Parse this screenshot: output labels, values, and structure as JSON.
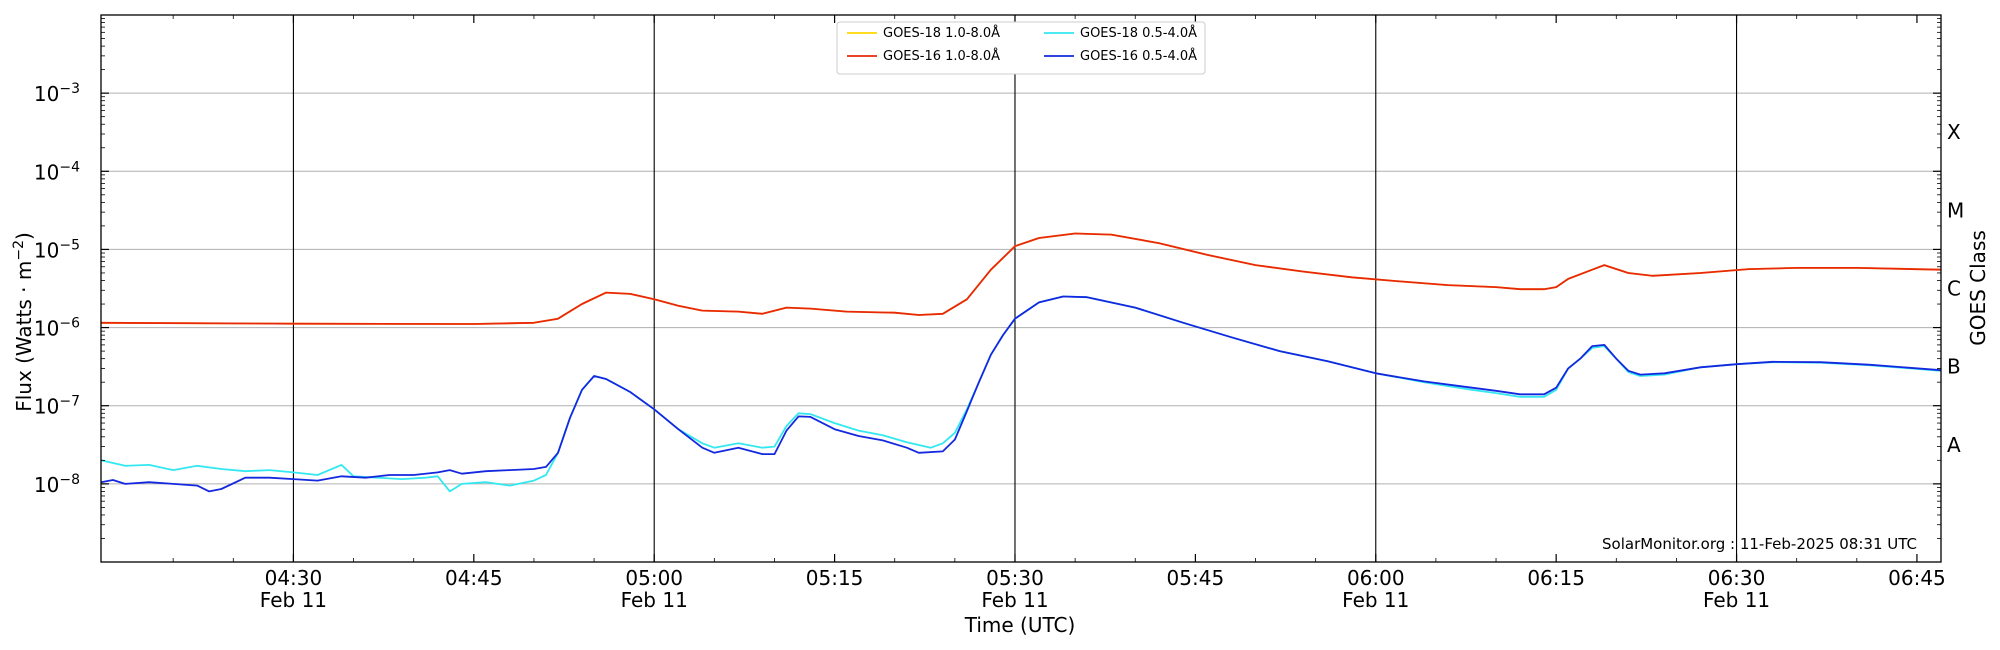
{
  "chart_data": {
    "type": "line",
    "xlabel": "Time (UTC)",
    "ylabel": "Flux (Watts · m",
    "ylabel_exp": "−2",
    "ylabel_close": ")",
    "y2label": "GOES Class",
    "x_units": "minutes after 04:00 UTC, 11 Feb 2025",
    "xlim": [
      14,
      167
    ],
    "ylim_log10": [
      -9,
      -2
    ],
    "y_scale": "log",
    "grid": "horizontal at each decade",
    "legend_position": "top-center",
    "x_ticks": [
      {
        "t": 30,
        "time": "04:30",
        "date": "Feb 11"
      },
      {
        "t": 45,
        "time": "04:45",
        "date": ""
      },
      {
        "t": 60,
        "time": "05:00",
        "date": "Feb 11"
      },
      {
        "t": 75,
        "time": "05:15",
        "date": ""
      },
      {
        "t": 90,
        "time": "05:30",
        "date": "Feb 11"
      },
      {
        "t": 105,
        "time": "05:45",
        "date": ""
      },
      {
        "t": 120,
        "time": "06:00",
        "date": "Feb 11"
      },
      {
        "t": 135,
        "time": "06:15",
        "date": ""
      },
      {
        "t": 150,
        "time": "06:30",
        "date": "Feb 11"
      },
      {
        "t": 165,
        "time": "06:45",
        "date": ""
      }
    ],
    "vlines_t": [
      30,
      60,
      90,
      120,
      150
    ],
    "y_ticks": [
      {
        "exp": -8,
        "base": "10",
        "sup": "−8"
      },
      {
        "exp": -7,
        "base": "10",
        "sup": "−7"
      },
      {
        "exp": -6,
        "base": "10",
        "sup": "−6"
      },
      {
        "exp": -5,
        "base": "10",
        "sup": "−5"
      },
      {
        "exp": -4,
        "base": "10",
        "sup": "−4"
      },
      {
        "exp": -3,
        "base": "10",
        "sup": "−3"
      }
    ],
    "goes_classes": [
      {
        "label": "A",
        "exp": -7.5
      },
      {
        "label": "B",
        "exp": -6.5
      },
      {
        "label": "C",
        "exp": -5.5
      },
      {
        "label": "M",
        "exp": -4.5
      },
      {
        "label": "X",
        "exp": -3.5
      }
    ],
    "watermark": "SolarMonitor.org : 11-Feb-2025 08:31 UTC",
    "series": [
      {
        "name": "GOES-18 1.0-8.0Å",
        "color": "#ffd700",
        "points": [
          [
            14,
            1.15e-06
          ],
          [
            30,
            1.12e-06
          ],
          [
            45,
            1.11e-06
          ],
          [
            50,
            1.15e-06
          ],
          [
            52,
            1.3e-06
          ],
          [
            54,
            2e-06
          ],
          [
            56,
            2.8e-06
          ],
          [
            58,
            2.7e-06
          ],
          [
            60,
            2.3e-06
          ],
          [
            62,
            1.9e-06
          ],
          [
            64,
            1.65e-06
          ],
          [
            67,
            1.6e-06
          ],
          [
            69,
            1.5e-06
          ],
          [
            71,
            1.8e-06
          ],
          [
            73,
            1.75e-06
          ],
          [
            76,
            1.6e-06
          ],
          [
            80,
            1.55e-06
          ],
          [
            82,
            1.45e-06
          ],
          [
            84,
            1.5e-06
          ],
          [
            86,
            2.3e-06
          ],
          [
            88,
            5.5e-06
          ],
          [
            90,
            1.1e-05
          ],
          [
            92,
            1.4e-05
          ],
          [
            95,
            1.6e-05
          ],
          [
            98,
            1.55e-05
          ],
          [
            102,
            1.2e-05
          ],
          [
            106,
            8.5e-06
          ],
          [
            110,
            6.3e-06
          ],
          [
            114,
            5.2e-06
          ],
          [
            118,
            4.4e-06
          ],
          [
            122,
            3.9e-06
          ],
          [
            126,
            3.5e-06
          ],
          [
            130,
            3.3e-06
          ],
          [
            132,
            3.1e-06
          ],
          [
            134,
            3.1e-06
          ],
          [
            135,
            3.3e-06
          ],
          [
            136,
            4.2e-06
          ],
          [
            138,
            5.5e-06
          ],
          [
            139,
            6.3e-06
          ],
          [
            141,
            5e-06
          ],
          [
            143,
            4.6e-06
          ],
          [
            147,
            5e-06
          ],
          [
            151,
            5.6e-06
          ],
          [
            155,
            5.8e-06
          ],
          [
            160,
            5.8e-06
          ],
          [
            167,
            5.5e-06
          ]
        ]
      },
      {
        "name": "GOES-16 1.0-8.0Å",
        "color": "#e8280c",
        "points": [
          [
            14,
            1.15e-06
          ],
          [
            30,
            1.12e-06
          ],
          [
            45,
            1.11e-06
          ],
          [
            50,
            1.15e-06
          ],
          [
            52,
            1.3e-06
          ],
          [
            54,
            2e-06
          ],
          [
            56,
            2.8e-06
          ],
          [
            58,
            2.7e-06
          ],
          [
            60,
            2.3e-06
          ],
          [
            62,
            1.9e-06
          ],
          [
            64,
            1.65e-06
          ],
          [
            67,
            1.6e-06
          ],
          [
            69,
            1.5e-06
          ],
          [
            71,
            1.8e-06
          ],
          [
            73,
            1.75e-06
          ],
          [
            76,
            1.6e-06
          ],
          [
            80,
            1.55e-06
          ],
          [
            82,
            1.45e-06
          ],
          [
            84,
            1.5e-06
          ],
          [
            86,
            2.3e-06
          ],
          [
            88,
            5.5e-06
          ],
          [
            90,
            1.1e-05
          ],
          [
            92,
            1.4e-05
          ],
          [
            95,
            1.6e-05
          ],
          [
            98,
            1.55e-05
          ],
          [
            102,
            1.2e-05
          ],
          [
            106,
            8.5e-06
          ],
          [
            110,
            6.3e-06
          ],
          [
            114,
            5.2e-06
          ],
          [
            118,
            4.4e-06
          ],
          [
            122,
            3.9e-06
          ],
          [
            126,
            3.5e-06
          ],
          [
            130,
            3.3e-06
          ],
          [
            132,
            3.1e-06
          ],
          [
            134,
            3.1e-06
          ],
          [
            135,
            3.3e-06
          ],
          [
            136,
            4.2e-06
          ],
          [
            138,
            5.5e-06
          ],
          [
            139,
            6.3e-06
          ],
          [
            141,
            5e-06
          ],
          [
            143,
            4.6e-06
          ],
          [
            147,
            5e-06
          ],
          [
            151,
            5.6e-06
          ],
          [
            155,
            5.8e-06
          ],
          [
            160,
            5.8e-06
          ],
          [
            167,
            5.5e-06
          ]
        ]
      },
      {
        "name": "GOES-18 0.5-4.0Å",
        "color": "#33e8f0",
        "points": [
          [
            14,
            2e-08
          ],
          [
            16,
            1.7e-08
          ],
          [
            18,
            1.75e-08
          ],
          [
            20,
            1.5e-08
          ],
          [
            22,
            1.7e-08
          ],
          [
            24,
            1.55e-08
          ],
          [
            26,
            1.45e-08
          ],
          [
            28,
            1.5e-08
          ],
          [
            30,
            1.4e-08
          ],
          [
            32,
            1.3e-08
          ],
          [
            34,
            1.75e-08
          ],
          [
            35,
            1.25e-08
          ],
          [
            37,
            1.2e-08
          ],
          [
            39,
            1.15e-08
          ],
          [
            41,
            1.2e-08
          ],
          [
            42,
            1.25e-08
          ],
          [
            43,
            8e-09
          ],
          [
            44,
            1e-08
          ],
          [
            46,
            1.05e-08
          ],
          [
            48,
            9.5e-09
          ],
          [
            50,
            1.1e-08
          ],
          [
            51,
            1.3e-08
          ],
          [
            52,
            2.5e-08
          ],
          [
            53,
            7e-08
          ],
          [
            54,
            1.6e-07
          ],
          [
            55,
            2.4e-07
          ],
          [
            56,
            2.2e-07
          ],
          [
            58,
            1.5e-07
          ],
          [
            60,
            9e-08
          ],
          [
            62,
            5e-08
          ],
          [
            64,
            3.3e-08
          ],
          [
            65,
            2.9e-08
          ],
          [
            67,
            3.3e-08
          ],
          [
            69,
            2.9e-08
          ],
          [
            70,
            3e-08
          ],
          [
            71,
            5.5e-08
          ],
          [
            72,
            8e-08
          ],
          [
            73,
            7.8e-08
          ],
          [
            75,
            6e-08
          ],
          [
            77,
            4.8e-08
          ],
          [
            79,
            4.2e-08
          ],
          [
            81,
            3.4e-08
          ],
          [
            83,
            2.9e-08
          ],
          [
            84,
            3.3e-08
          ],
          [
            85,
            4.5e-08
          ],
          [
            86,
            9e-08
          ],
          [
            87,
            2e-07
          ],
          [
            88,
            4.5e-07
          ],
          [
            89,
            8e-07
          ],
          [
            90,
            1.3e-06
          ],
          [
            92,
            2.1e-06
          ],
          [
            94,
            2.5e-06
          ],
          [
            96,
            2.45e-06
          ],
          [
            100,
            1.8e-06
          ],
          [
            104,
            1.15e-06
          ],
          [
            108,
            7.5e-07
          ],
          [
            112,
            5e-07
          ],
          [
            116,
            3.7e-07
          ],
          [
            120,
            2.6e-07
          ],
          [
            124,
            2e-07
          ],
          [
            128,
            1.6e-07
          ],
          [
            130,
            1.45e-07
          ],
          [
            132,
            1.3e-07
          ],
          [
            134,
            1.3e-07
          ],
          [
            135,
            1.6e-07
          ],
          [
            136,
            3e-07
          ],
          [
            137,
            4e-07
          ],
          [
            138,
            5.5e-07
          ],
          [
            139,
            5.8e-07
          ],
          [
            140,
            4e-07
          ],
          [
            141,
            2.7e-07
          ],
          [
            142,
            2.4e-07
          ],
          [
            144,
            2.5e-07
          ],
          [
            147,
            3.1e-07
          ],
          [
            150,
            3.4e-07
          ],
          [
            153,
            3.6e-07
          ],
          [
            157,
            3.55e-07
          ],
          [
            161,
            3.3e-07
          ],
          [
            167,
            2.8e-07
          ]
        ]
      },
      {
        "name": "GOES-16 0.5-4.0Å",
        "color": "#1428e0",
        "points": [
          [
            14,
            1.05e-08
          ],
          [
            15,
            1.12e-08
          ],
          [
            16,
            1e-08
          ],
          [
            18,
            1.05e-08
          ],
          [
            20,
            1e-08
          ],
          [
            22,
            9.5e-09
          ],
          [
            23,
            8e-09
          ],
          [
            24,
            8.6e-09
          ],
          [
            26,
            1.2e-08
          ],
          [
            28,
            1.2e-08
          ],
          [
            30,
            1.15e-08
          ],
          [
            32,
            1.1e-08
          ],
          [
            34,
            1.25e-08
          ],
          [
            36,
            1.2e-08
          ],
          [
            38,
            1.3e-08
          ],
          [
            40,
            1.3e-08
          ],
          [
            42,
            1.4e-08
          ],
          [
            43,
            1.5e-08
          ],
          [
            44,
            1.35e-08
          ],
          [
            46,
            1.45e-08
          ],
          [
            48,
            1.5e-08
          ],
          [
            50,
            1.55e-08
          ],
          [
            51,
            1.65e-08
          ],
          [
            52,
            2.5e-08
          ],
          [
            53,
            7e-08
          ],
          [
            54,
            1.6e-07
          ],
          [
            55,
            2.4e-07
          ],
          [
            56,
            2.2e-07
          ],
          [
            58,
            1.5e-07
          ],
          [
            60,
            9e-08
          ],
          [
            62,
            5e-08
          ],
          [
            64,
            2.9e-08
          ],
          [
            65,
            2.5e-08
          ],
          [
            67,
            2.9e-08
          ],
          [
            69,
            2.4e-08
          ],
          [
            70,
            2.4e-08
          ],
          [
            71,
            4.8e-08
          ],
          [
            72,
            7.3e-08
          ],
          [
            73,
            7.2e-08
          ],
          [
            75,
            5e-08
          ],
          [
            77,
            4.1e-08
          ],
          [
            79,
            3.6e-08
          ],
          [
            81,
            2.9e-08
          ],
          [
            82,
            2.5e-08
          ],
          [
            84,
            2.6e-08
          ],
          [
            85,
            3.7e-08
          ],
          [
            86,
            8.5e-08
          ],
          [
            87,
            2e-07
          ],
          [
            88,
            4.5e-07
          ],
          [
            89,
            8e-07
          ],
          [
            90,
            1.3e-06
          ],
          [
            92,
            2.1e-06
          ],
          [
            94,
            2.5e-06
          ],
          [
            96,
            2.45e-06
          ],
          [
            100,
            1.8e-06
          ],
          [
            104,
            1.15e-06
          ],
          [
            108,
            7.5e-07
          ],
          [
            112,
            5e-07
          ],
          [
            116,
            3.7e-07
          ],
          [
            120,
            2.6e-07
          ],
          [
            124,
            2.05e-07
          ],
          [
            128,
            1.7e-07
          ],
          [
            130,
            1.55e-07
          ],
          [
            132,
            1.4e-07
          ],
          [
            134,
            1.4e-07
          ],
          [
            135,
            1.7e-07
          ],
          [
            136,
            3e-07
          ],
          [
            137,
            4e-07
          ],
          [
            138,
            5.8e-07
          ],
          [
            139,
            6e-07
          ],
          [
            140,
            4e-07
          ],
          [
            141,
            2.8e-07
          ],
          [
            142,
            2.5e-07
          ],
          [
            144,
            2.6e-07
          ],
          [
            147,
            3.1e-07
          ],
          [
            150,
            3.4e-07
          ],
          [
            153,
            3.65e-07
          ],
          [
            157,
            3.6e-07
          ],
          [
            161,
            3.35e-07
          ],
          [
            167,
            2.85e-07
          ]
        ]
      }
    ]
  }
}
